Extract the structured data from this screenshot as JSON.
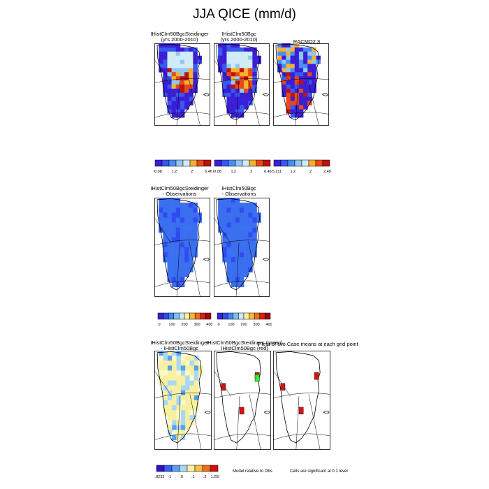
{
  "title": "JJA QICE (mm/d)",
  "panels": [
    {
      "id": "p1",
      "title_lines": [
        "IHistClm50BgcSteidinger",
        "(yrs 2000-2010)"
      ]
    },
    {
      "id": "p2",
      "title_lines": [
        "IHistClm50Bgc",
        "(yrs 2000-2010)"
      ]
    },
    {
      "id": "p3",
      "title_lines": [
        "RACMO2.3"
      ]
    },
    {
      "id": "p4",
      "title_lines": [
        "IHistClm50BgcSteidinger",
        "- Observations"
      ]
    },
    {
      "id": "p5",
      "title_lines": [
        "IHistClm50Bgc",
        "- Observations"
      ]
    },
    {
      "id": "p6",
      "title_lines": [
        "IHistClm50BgcSteidinger",
        "- IHistClm50Bgc"
      ]
    },
    {
      "id": "p7",
      "title_lines": [
        "IHistClm50BgcSteidinger (green)",
        "IHistClm50Bgc (red)"
      ]
    },
    {
      "id": "p8",
      "title_lines": []
    }
  ],
  "sig_title": "T-test of two Case means at each grid point",
  "notes": {
    "model_relative": "Model relative to Obs",
    "significance": "Cells are significant at 0.1 level"
  },
  "colorbars": [
    {
      "id": "cb1",
      "labels": [
        "-30.08",
        "1.2",
        "2",
        "6.469"
      ]
    },
    {
      "id": "cb2",
      "labels": [
        "-30.08",
        "1.2",
        "2",
        "6.469"
      ]
    },
    {
      "id": "cb3",
      "labels": [
        "-15.211",
        "1.2",
        "2",
        "2.499"
      ]
    },
    {
      "id": "cb4",
      "labels": [
        "0",
        "100",
        "200",
        "300",
        "400"
      ]
    },
    {
      "id": "cb5",
      "labels": [
        "0",
        "100",
        "200",
        "300",
        "400"
      ]
    },
    {
      "id": "cb6",
      "labels": [
        "-4.8233",
        "-1",
        ".0",
        ".1",
        ".2",
        "1.2559"
      ]
    }
  ],
  "palettes": {
    "seq": [
      "#3a1fd6",
      "#2f4cf0",
      "#3f86f5",
      "#78c0f0",
      "#c8eaf8",
      "#fff0a0",
      "#f8b838",
      "#f07018",
      "#d82010",
      "#a00010"
    ],
    "ice": [
      "#3a1fd6",
      "#3858f0",
      "#4a8ef5",
      "#90c8f0",
      "#d0ecf8",
      "#f8b030",
      "#e84818",
      "#c01010"
    ],
    "diff": [
      "#3010c8",
      "#3860f0",
      "#58a0f5",
      "#a8d8f5",
      "#f8f0a0",
      "#f8c040",
      "#f07020",
      "#d01010"
    ]
  },
  "chart_data": [
    {
      "type": "heatmap",
      "title": "IHistClm50BgcSteidinger (yrs 2000-2010)",
      "variable": "JJA QICE",
      "units": "mm/d",
      "colorbar_ticks": [
        -30.08,
        1.2,
        2,
        6.469
      ]
    },
    {
      "type": "heatmap",
      "title": "IHistClm50Bgc (yrs 2000-2010)",
      "variable": "JJA QICE",
      "units": "mm/d",
      "colorbar_ticks": [
        -30.08,
        1.2,
        2,
        6.469
      ]
    },
    {
      "type": "heatmap",
      "title": "RACMO2.3",
      "variable": "JJA QICE",
      "units": "mm/d",
      "colorbar_ticks": [
        -15.211,
        1.2,
        2,
        2.499
      ]
    },
    {
      "type": "heatmap",
      "title": "IHistClm50BgcSteidinger - Observations",
      "colorbar_ticks": [
        0,
        100,
        200,
        300,
        400
      ]
    },
    {
      "type": "heatmap",
      "title": "IHistClm50Bgc - Observations",
      "colorbar_ticks": [
        0,
        100,
        200,
        300,
        400
      ]
    },
    {
      "type": "heatmap",
      "title": "IHistClm50BgcSteidinger - IHistClm50Bgc",
      "colorbar_ticks": [
        -4.8233,
        -1,
        0,
        0.1,
        0.2,
        1.2559
      ]
    },
    {
      "type": "heatmap",
      "title": "T-test of two Case means at each grid point"
    }
  ]
}
